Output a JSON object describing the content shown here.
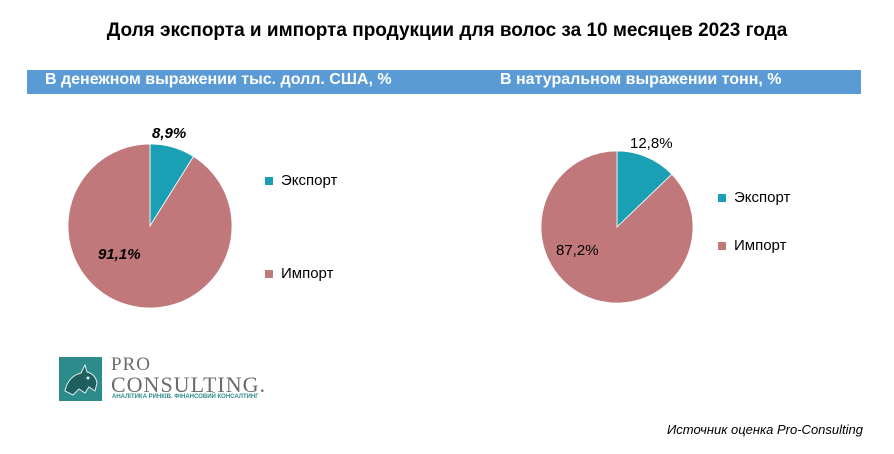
{
  "title": "Доля экспорта и импорта продукции для волос за 10 месяцев 2023 года",
  "colors": {
    "export": "#1aa0b4",
    "import": "#c0787a",
    "band": "#5b9bd5"
  },
  "chart_data": [
    {
      "type": "pie",
      "subtitle": "В денежном выражении тыс. долл. США, %",
      "legend": "right",
      "series": [
        {
          "name": "Экспорт",
          "value": 8.9,
          "label": "8,9%"
        },
        {
          "name": "Импорт",
          "value": 91.1,
          "label": "91,1%"
        }
      ]
    },
    {
      "type": "pie",
      "subtitle": "В натуральном выражении тонн, %",
      "legend": "right",
      "series": [
        {
          "name": "Экспорт",
          "value": 12.8,
          "label": "12,8%"
        },
        {
          "name": "Импорт",
          "value": 87.2,
          "label": "87,2%"
        }
      ]
    }
  ],
  "logo": {
    "line1": "PRO",
    "line2": "CONSULTING.",
    "tagline": "АНАЛІТИКА РИНКІВ. ФІНАНСОВИЙ КОНСАЛТИНГ",
    "mark": "rhino-icon"
  },
  "source": "Источник  оценка Pro-Consulting"
}
